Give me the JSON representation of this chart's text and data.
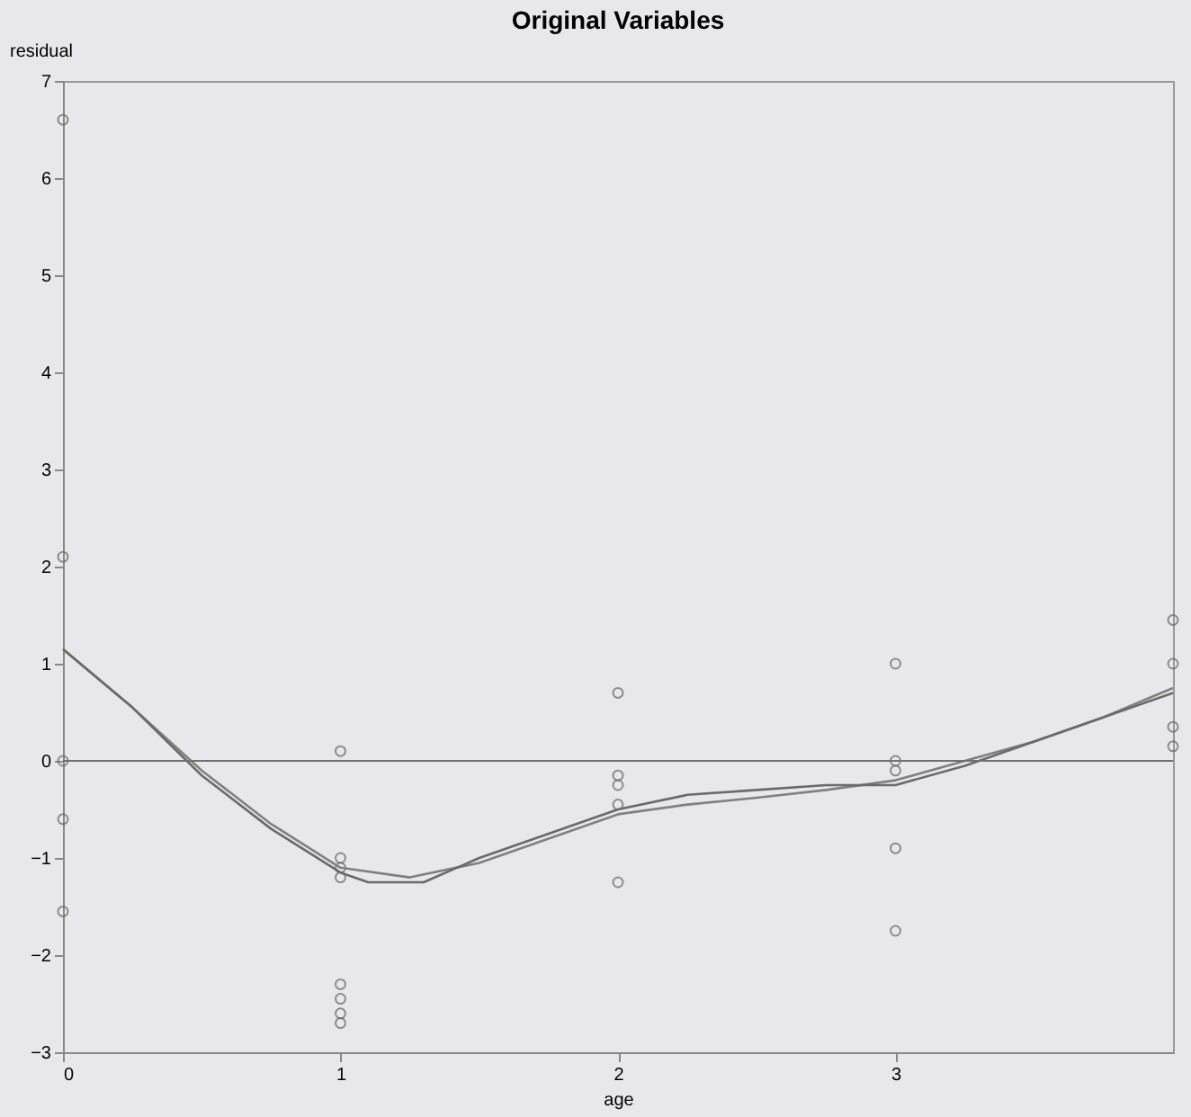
{
  "chart_data": {
    "type": "scatter",
    "title": "Original Variables",
    "xlabel": "age",
    "ylabel": "residual",
    "xlim": [
      0,
      4
    ],
    "xticks": [
      0,
      1,
      2,
      3
    ],
    "ylim": [
      -3,
      7
    ],
    "yticks": [
      -3,
      -2,
      -1,
      0,
      1,
      2,
      3,
      4,
      5,
      6,
      7
    ],
    "grid": false,
    "marker": "circle",
    "ref_lines": [
      {
        "axis": "y",
        "value": 0,
        "color": "#707070"
      }
    ],
    "series": [
      {
        "type": "scatter",
        "color": "#666666",
        "x": [
          0,
          0,
          0,
          0,
          0,
          1,
          1,
          1,
          1,
          1,
          1,
          1,
          1,
          2,
          2,
          2,
          2,
          2,
          3,
          3,
          3,
          3,
          3,
          4,
          4,
          4,
          4
        ],
        "values": [
          6.6,
          2.1,
          0,
          -0.6,
          -1.55,
          0.1,
          -1.0,
          -1.1,
          -1.2,
          -2.3,
          -2.45,
          -2.6,
          -2.7,
          0.7,
          -0.15,
          -0.25,
          -0.45,
          -1.25,
          1.0,
          0,
          -0.1,
          -0.9,
          -1.75,
          1.45,
          1.0,
          0.35,
          0.15
        ]
      },
      {
        "type": "line",
        "color": "#808080",
        "marker": "none",
        "x": [
          0,
          0.25,
          0.5,
          0.75,
          1,
          1.25,
          1.5,
          1.75,
          2,
          2.25,
          2.5,
          2.75,
          3,
          3.25,
          3.5,
          3.75,
          4
        ],
        "values": [
          1.15,
          0.55,
          -0.1,
          -0.65,
          -1.1,
          -1.2,
          -1.05,
          -0.8,
          -0.55,
          -0.45,
          -0.38,
          -0.3,
          -0.2,
          0,
          0.2,
          0.45,
          0.75
        ]
      },
      {
        "type": "line",
        "color": "#6a6a6a",
        "marker": "none",
        "x": [
          0,
          0.25,
          0.5,
          0.75,
          1,
          1.1,
          1.3,
          1.5,
          1.75,
          2,
          2.25,
          2.5,
          2.75,
          3,
          3.25,
          3.5,
          3.75,
          4
        ],
        "values": [
          1.15,
          0.55,
          -0.15,
          -0.7,
          -1.15,
          -1.25,
          -1.25,
          -1.0,
          -0.75,
          -0.5,
          -0.35,
          -0.3,
          -0.25,
          -0.25,
          -0.05,
          0.2,
          0.45,
          0.7
        ]
      }
    ]
  }
}
